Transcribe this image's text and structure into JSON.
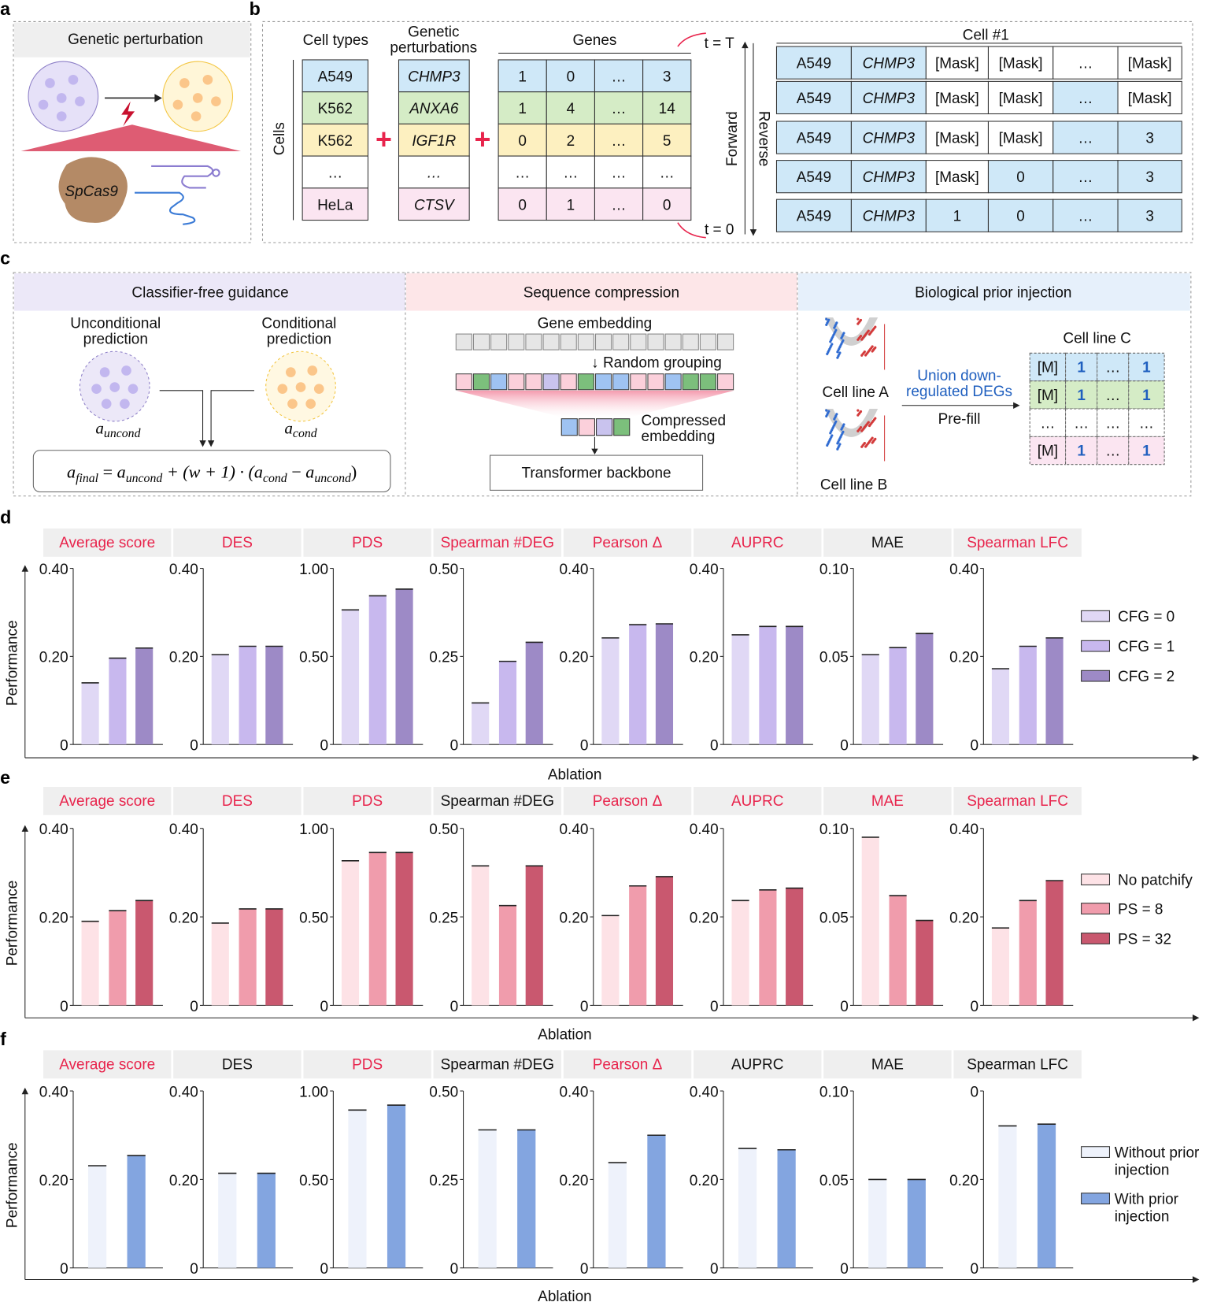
{
  "panel_labels": [
    "a",
    "b",
    "c",
    "d",
    "e",
    "f"
  ],
  "panel_a": {
    "title": "Genetic perturbation",
    "enzyme_label": "SpCas9"
  },
  "panel_b": {
    "cell_types_header": "Cell types",
    "perturbations_header": [
      "Genetic",
      "perturbations"
    ],
    "genes_header": "Genes",
    "cells_label": "Cells",
    "plus": "+",
    "row_colors": [
      "#cfe8f8",
      "#d5ecc6",
      "#fdf0c0",
      "#ffffff",
      "#fbe5f1"
    ],
    "cell_types": [
      "A549",
      "K562",
      "K562",
      "…",
      "HeLa"
    ],
    "perturbations": [
      "CHMP3",
      "ANXA6",
      "IGF1R",
      "…",
      "CTSV"
    ],
    "genes": [
      [
        "1",
        "0",
        "…",
        "3"
      ],
      [
        "1",
        "4",
        "…",
        "14"
      ],
      [
        "0",
        "2",
        "…",
        "5"
      ],
      [
        "…",
        "…",
        "…",
        "…"
      ],
      [
        "0",
        "1",
        "…",
        "0"
      ]
    ],
    "t_top": "t = T",
    "t_bottom": "t = 0",
    "forward": "Forward",
    "reverse": "Reverse",
    "cell_title": "Cell #1",
    "sequence_rows": [
      [
        "A549",
        "CHMP3",
        "[Mask]",
        "[Mask]",
        "…",
        "[Mask]"
      ],
      [
        "A549",
        "CHMP3",
        "[Mask]",
        "[Mask]",
        "…",
        "[Mask]"
      ],
      [
        "A549",
        "CHMP3",
        "[Mask]",
        "[Mask]",
        "…",
        "3"
      ],
      [
        "A549",
        "CHMP3",
        "[Mask]",
        "0",
        "…",
        "3"
      ],
      [
        "A549",
        "CHMP3",
        "1",
        "0",
        "…",
        "3"
      ]
    ]
  },
  "panel_c": {
    "cfg": {
      "title": "Classifier-free guidance",
      "uncond": [
        "Unconditional",
        "prediction"
      ],
      "cond": [
        "Conditional",
        "prediction"
      ],
      "a_uncond": [
        "a",
        "uncond"
      ],
      "a_cond": [
        "a",
        "cond"
      ],
      "formula": [
        "a",
        "final",
        " = ",
        "a",
        "uncond",
        " + (w + 1) · (",
        "a",
        "cond",
        " − ",
        "a",
        "uncond",
        ")"
      ]
    },
    "compression": {
      "title": "Sequence compression",
      "gene_embedding": "Gene embedding",
      "random_grouping": "↓ Random grouping",
      "compressed": [
        "Compressed",
        "embedding"
      ],
      "backbone": "Transformer backbone"
    },
    "prior": {
      "title": "Biological prior injection",
      "cell_a": "Cell line A",
      "cell_b": "Cell line B",
      "union": [
        "Union down-",
        "regulated DEGs"
      ],
      "prefill": "Pre-fill",
      "cell_c": "Cell line C",
      "rows": [
        [
          "[M]",
          "1",
          "…",
          "1"
        ],
        [
          "[M]",
          "1",
          "…",
          "1"
        ],
        [
          "…",
          "…",
          "…",
          "…"
        ],
        [
          "[M]",
          "1",
          "…",
          "1"
        ]
      ],
      "row_colors": [
        "#cfe8f8",
        "#d5ecc6",
        "#ffffff",
        "#fbe5f1"
      ]
    }
  },
  "chart_data": [
    {
      "type": "bar",
      "label": "d",
      "xlabel": "Ablation",
      "ylabel": "Performance",
      "legend": [
        {
          "label": [
            "CFG = 0"
          ],
          "color": "#e0d8f5"
        },
        {
          "label": [
            "CFG = 1"
          ],
          "color": "#c8b8ee"
        },
        {
          "label": [
            "CFG = 2"
          ],
          "color": "#9d8ac6"
        }
      ],
      "legend_position": "right",
      "panels": [
        {
          "title": "Average score",
          "title_color": "#e8244c",
          "yticks": [
            "0",
            "0.20",
            "0.40"
          ],
          "ylim": [
            0,
            0.4
          ],
          "values": [
            0.14,
            0.196,
            0.219
          ]
        },
        {
          "title": "DES",
          "title_color": "#e8244c",
          "yticks": [
            "0",
            "0.20",
            "0.40"
          ],
          "ylim": [
            0,
            0.4
          ],
          "values": [
            0.204,
            0.223,
            0.223
          ]
        },
        {
          "title": "PDS",
          "title_color": "#e8244c",
          "yticks": [
            "0",
            "0.50",
            "1.00"
          ],
          "ylim": [
            0,
            1.0
          ],
          "values": [
            0.764,
            0.844,
            0.882
          ]
        },
        {
          "title": "Spearman #DEG",
          "title_color": "#e8244c",
          "yticks": [
            "0",
            "0.25",
            "0.50"
          ],
          "ylim": [
            0,
            0.5
          ],
          "values": [
            0.118,
            0.236,
            0.29
          ]
        },
        {
          "title": "Pearson Δ",
          "title_color": "#e8244c",
          "yticks": [
            "0",
            "0.20",
            "0.40"
          ],
          "ylim": [
            0,
            0.4
          ],
          "values": [
            0.242,
            0.272,
            0.274
          ]
        },
        {
          "title": "AUPRC",
          "title_color": "#e8244c",
          "yticks": [
            "0",
            "0.20",
            "0.40"
          ],
          "ylim": [
            0,
            0.4
          ],
          "values": [
            0.249,
            0.268,
            0.268
          ]
        },
        {
          "title": "MAE",
          "title_color": "#111111",
          "yticks": [
            "0",
            "0.05",
            "0.10"
          ],
          "ylim": [
            0,
            0.1
          ],
          "values": [
            0.051,
            0.055,
            0.063
          ]
        },
        {
          "title": "Spearman LFC",
          "title_color": "#e8244c",
          "yticks": [
            "0",
            "0.20",
            "0.40"
          ],
          "ylim": [
            0,
            0.4
          ],
          "values": [
            0.172,
            0.223,
            0.242
          ]
        }
      ]
    },
    {
      "type": "bar",
      "label": "e",
      "xlabel": "Ablation",
      "ylabel": "Performance",
      "legend": [
        {
          "label": [
            "No patchify"
          ],
          "color": "#fde2e6"
        },
        {
          "label": [
            "PS = 8"
          ],
          "color": "#f09cac"
        },
        {
          "label": [
            "PS = 32"
          ],
          "color": "#c9586f"
        }
      ],
      "legend_position": "right",
      "panels": [
        {
          "title": "Average score",
          "title_color": "#e8244c",
          "yticks": [
            "0",
            "0.20",
            "0.40"
          ],
          "ylim": [
            0,
            0.4
          ],
          "values": [
            0.19,
            0.214,
            0.237
          ]
        },
        {
          "title": "DES",
          "title_color": "#e8244c",
          "yticks": [
            "0",
            "0.20",
            "0.40"
          ],
          "ylim": [
            0,
            0.4
          ],
          "values": [
            0.186,
            0.218,
            0.218
          ]
        },
        {
          "title": "PDS",
          "title_color": "#e8244c",
          "yticks": [
            "0",
            "0.50",
            "1.00"
          ],
          "ylim": [
            0,
            1.0
          ],
          "values": [
            0.817,
            0.864,
            0.864
          ]
        },
        {
          "title": "Spearman #DEG",
          "title_color": "#111111",
          "yticks": [
            "0",
            "0.25",
            "0.50"
          ],
          "ylim": [
            0,
            0.5
          ],
          "values": [
            0.394,
            0.282,
            0.394
          ]
        },
        {
          "title": "Pearson Δ",
          "title_color": "#e8244c",
          "yticks": [
            "0",
            "0.20",
            "0.40"
          ],
          "ylim": [
            0,
            0.4
          ],
          "values": [
            0.203,
            0.27,
            0.291
          ]
        },
        {
          "title": "AUPRC",
          "title_color": "#e8244c",
          "yticks": [
            "0",
            "0.20",
            "0.40"
          ],
          "ylim": [
            0,
            0.4
          ],
          "values": [
            0.237,
            0.261,
            0.265
          ]
        },
        {
          "title": "MAE",
          "title_color": "#e8244c",
          "yticks": [
            "0",
            "0.05",
            "0.10"
          ],
          "ylim": [
            0,
            0.1
          ],
          "values": [
            0.095,
            0.062,
            0.048
          ]
        },
        {
          "title": "Spearman LFC",
          "title_color": "#e8244c",
          "yticks": [
            "0",
            "0.20",
            "0.40"
          ],
          "ylim": [
            0,
            0.4
          ],
          "values": [
            0.175,
            0.237,
            0.282
          ]
        }
      ]
    },
    {
      "type": "bar",
      "label": "f",
      "xlabel": "Ablation",
      "ylabel": "Performance",
      "legend": [
        {
          "label": [
            "Without prior",
            "injection"
          ],
          "color": "#eef2fb"
        },
        {
          "label": [
            "With prior",
            "injection"
          ],
          "color": "#83a5e0"
        }
      ],
      "legend_position": "right",
      "panels": [
        {
          "title": "Average score",
          "title_color": "#e8244c",
          "yticks": [
            "0",
            "0.20",
            "0.40"
          ],
          "ylim": [
            0,
            0.4
          ],
          "values": [
            0.231,
            0.254
          ]
        },
        {
          "title": "DES",
          "title_color": "#111111",
          "yticks": [
            "0",
            "0.20",
            "0.40"
          ],
          "ylim": [
            0,
            0.4
          ],
          "values": [
            0.214,
            0.214
          ]
        },
        {
          "title": "PDS",
          "title_color": "#e8244c",
          "yticks": [
            "0",
            "0.50",
            "1.00"
          ],
          "ylim": [
            0,
            1.0
          ],
          "values": [
            0.892,
            0.92
          ]
        },
        {
          "title": "Spearman #DEG",
          "title_color": "#111111",
          "yticks": [
            "0",
            "0.25",
            "0.50"
          ],
          "ylim": [
            0,
            0.5
          ],
          "values": [
            0.39,
            0.39
          ]
        },
        {
          "title": "Pearson Δ",
          "title_color": "#e8244c",
          "yticks": [
            "0",
            "0.20",
            "0.40"
          ],
          "ylim": [
            0,
            0.4
          ],
          "values": [
            0.238,
            0.3
          ]
        },
        {
          "title": "AUPRC",
          "title_color": "#111111",
          "yticks": [
            "0",
            "0.20",
            "0.40"
          ],
          "ylim": [
            0,
            0.4
          ],
          "values": [
            0.27,
            0.267
          ]
        },
        {
          "title": "MAE",
          "title_color": "#111111",
          "yticks": [
            "0",
            "0.05",
            "0.10"
          ],
          "ylim": [
            0,
            0.1
          ],
          "values": [
            0.05,
            0.05
          ]
        },
        {
          "title": "Spearman LFC",
          "title_color": "#111111",
          "yticks": [
            "0",
            "0.20",
            "0"
          ],
          "ylim": [
            0,
            0.4
          ],
          "values": [
            0.321,
            0.325
          ]
        }
      ]
    }
  ]
}
